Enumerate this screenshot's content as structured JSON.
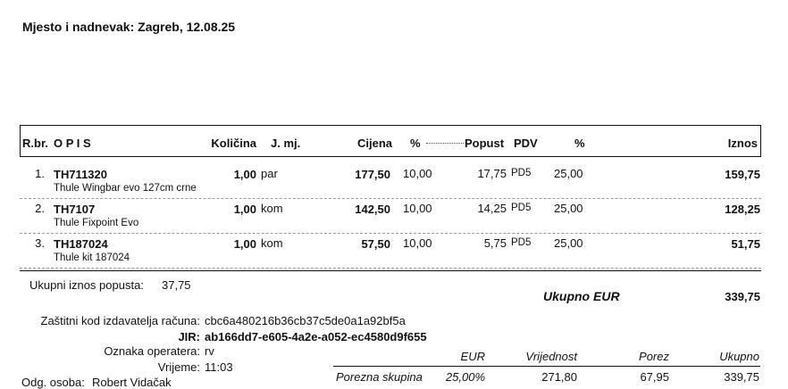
{
  "place_date": "Mjesto i nadnevak: Zagreb, 12.08.25",
  "headers": {
    "rbr": "R.br.",
    "opis": "O P I S",
    "kolicina": "Količina",
    "jmj": "J. mj.",
    "cijena": "Cijena",
    "pct": "%",
    "popust": "Popust",
    "pdv": "PDV",
    "pdv_pct": "%",
    "iznos": "Iznos"
  },
  "items": [
    {
      "rbr": "1.",
      "code": "TH711320",
      "desc": "Thule Wingbar evo 127cm crne",
      "qty": "1,00",
      "unit": "par",
      "price": "177,50",
      "disc_pct": "10,00",
      "disc": "17,75",
      "pdv": "PD5",
      "pdv_pct": "25,00",
      "amount": "159,75"
    },
    {
      "rbr": "2.",
      "code": "TH7107",
      "desc": "Thule Fixpoint Evo",
      "qty": "1,00",
      "unit": "kom",
      "price": "142,50",
      "disc_pct": "10,00",
      "disc": "14,25",
      "pdv": "PD5",
      "pdv_pct": "25,00",
      "amount": "128,25"
    },
    {
      "rbr": "3.",
      "code": "TH187024",
      "desc": "Thule kit 187024",
      "qty": "1,00",
      "unit": "kom",
      "price": "57,50",
      "disc_pct": "10,00",
      "disc": "5,75",
      "pdv": "PD5",
      "pdv_pct": "25,00",
      "amount": "51,75"
    }
  ],
  "discount_total": {
    "label": "Ukupni iznos popusta:",
    "value": "37,75"
  },
  "total": {
    "label": "Ukupno EUR",
    "value": "339,75"
  },
  "zki": {
    "label": "Zaštitni kod izdavatelja računa:",
    "value": "cbc6a480216b36cb37c5de0a1a92bf5a"
  },
  "jir": {
    "label": "JIR:",
    "value": "ab166dd7-e605-4a2e-a052-ec4580d9f655"
  },
  "operator": {
    "label": "Oznaka operatera:",
    "value": "rv"
  },
  "time": {
    "label": "Vrijeme:",
    "value": "11:03"
  },
  "person": {
    "label": "Odg. osoba:",
    "value": "Robert Vidačak"
  },
  "tax": {
    "headers": [
      "EUR",
      "Vrijednost",
      "Porez",
      "Ukupno"
    ],
    "row": {
      "label": "Porezna skupina",
      "rate": "25,00%",
      "base": "271,80",
      "tax": "67,95",
      "total": "339,75"
    }
  }
}
